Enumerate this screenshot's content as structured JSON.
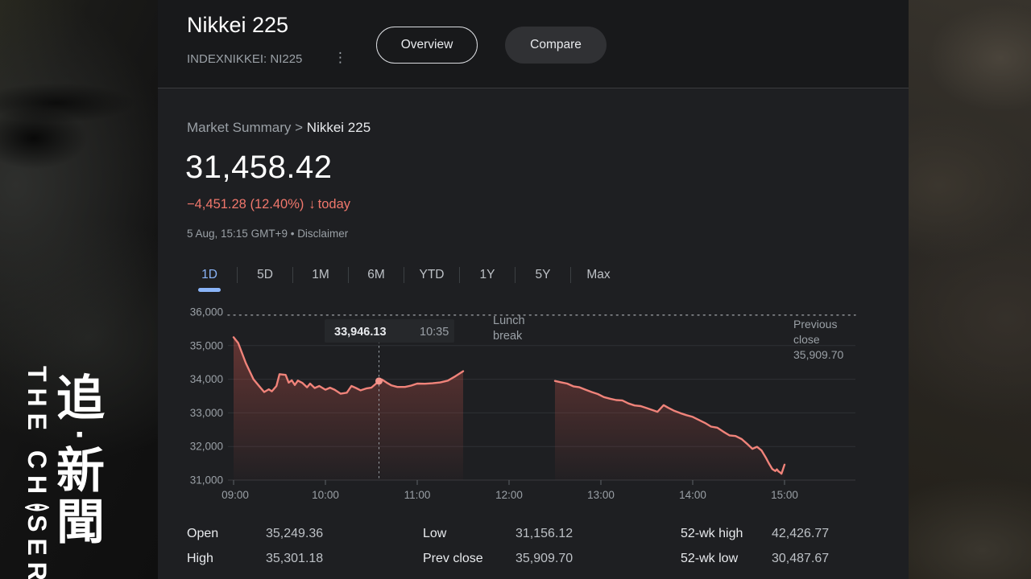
{
  "brand": {
    "en_pre": "THE CH",
    "en_post": "SER",
    "en_full": "THE CHASER",
    "zh_chars": [
      "追",
      "·",
      "新",
      "聞"
    ]
  },
  "header": {
    "title": "Nikkei 225",
    "ticker": "INDEXNIKKEI: NI225",
    "menu_glyph": "⋮",
    "overview_label": "Overview",
    "compare_label": "Compare"
  },
  "summary": {
    "breadcrumb_root": "Market Summary",
    "breadcrumb_sep": " > ",
    "breadcrumb_current": "Nikkei 225",
    "price": "31,458.42",
    "change": "−4,451.28 (12.40%)",
    "change_arrow": "↓",
    "change_suffix": "today",
    "meta_time": "5 Aug, 15:15 GMT+9 • ",
    "disclaimer": "Disclaimer"
  },
  "tabs": {
    "items": [
      "1D",
      "5D",
      "1M",
      "6M",
      "YTD",
      "1Y",
      "5Y",
      "Max"
    ],
    "active": "1D"
  },
  "chart_data": {
    "type": "line",
    "title": "Nikkei 225 1D intraday",
    "line_color": "#f0837a",
    "x_axis": {
      "labels": [
        "09:00",
        "10:00",
        "11:00",
        "12:00",
        "13:00",
        "14:00",
        "15:00"
      ],
      "start_minutes": 0,
      "end_minutes": 360
    },
    "y_axis": {
      "labels": [
        "36,000",
        "35,000",
        "34,000",
        "33,000",
        "32,000",
        "31,000"
      ],
      "min": 31000,
      "max": 36000,
      "grid": true
    },
    "previous_close": {
      "label_line1": "Previous",
      "label_line2": "close",
      "value_text": "35,909.70",
      "value": 35909.7
    },
    "lunch_break": {
      "label_line1": "Lunch",
      "label_line2": "break",
      "start_minutes": 150,
      "end_minutes": 210
    },
    "tooltip": {
      "price": "33,946.13",
      "time": "10:35",
      "minutes": 95,
      "value": 33946.13
    },
    "sessions": [
      {
        "name": "morning",
        "points": [
          [
            0,
            35249
          ],
          [
            3,
            35080
          ],
          [
            8,
            34480
          ],
          [
            13,
            34000
          ],
          [
            17,
            33780
          ],
          [
            20,
            33620
          ],
          [
            23,
            33700
          ],
          [
            25,
            33640
          ],
          [
            28,
            33800
          ],
          [
            30,
            34150
          ],
          [
            34,
            34130
          ],
          [
            36,
            33900
          ],
          [
            38,
            33970
          ],
          [
            40,
            33830
          ],
          [
            42,
            33960
          ],
          [
            45,
            33890
          ],
          [
            48,
            33760
          ],
          [
            50,
            33870
          ],
          [
            53,
            33740
          ],
          [
            56,
            33800
          ],
          [
            60,
            33690
          ],
          [
            63,
            33750
          ],
          [
            66,
            33690
          ],
          [
            70,
            33570
          ],
          [
            74,
            33600
          ],
          [
            77,
            33800
          ],
          [
            80,
            33740
          ],
          [
            83,
            33670
          ],
          [
            87,
            33730
          ],
          [
            90,
            33750
          ],
          [
            95,
            33946.13
          ],
          [
            97,
            33990
          ],
          [
            100,
            33900
          ],
          [
            103,
            33820
          ],
          [
            107,
            33770
          ],
          [
            112,
            33770
          ],
          [
            116,
            33810
          ],
          [
            120,
            33870
          ],
          [
            125,
            33865
          ],
          [
            130,
            33880
          ],
          [
            135,
            33905
          ],
          [
            140,
            33960
          ],
          [
            145,
            34090
          ],
          [
            150,
            34240
          ]
        ]
      },
      {
        "name": "afternoon",
        "points": [
          [
            210,
            33950
          ],
          [
            214,
            33910
          ],
          [
            218,
            33870
          ],
          [
            222,
            33790
          ],
          [
            226,
            33760
          ],
          [
            230,
            33690
          ],
          [
            234,
            33620
          ],
          [
            238,
            33560
          ],
          [
            242,
            33470
          ],
          [
            246,
            33420
          ],
          [
            250,
            33380
          ],
          [
            254,
            33370
          ],
          [
            258,
            33280
          ],
          [
            262,
            33220
          ],
          [
            266,
            33200
          ],
          [
            270,
            33140
          ],
          [
            274,
            33080
          ],
          [
            277,
            33030
          ],
          [
            281,
            33230
          ],
          [
            284,
            33150
          ],
          [
            288,
            33060
          ],
          [
            292,
            32990
          ],
          [
            296,
            32930
          ],
          [
            300,
            32880
          ],
          [
            304,
            32790
          ],
          [
            308,
            32700
          ],
          [
            312,
            32590
          ],
          [
            316,
            32560
          ],
          [
            320,
            32440
          ],
          [
            324,
            32330
          ],
          [
            328,
            32310
          ],
          [
            332,
            32220
          ],
          [
            336,
            32060
          ],
          [
            339,
            31930
          ],
          [
            342,
            31990
          ],
          [
            345,
            31880
          ],
          [
            348,
            31650
          ],
          [
            350,
            31480
          ],
          [
            352,
            31330
          ],
          [
            354,
            31270
          ],
          [
            355,
            31320
          ],
          [
            356,
            31260
          ],
          [
            357,
            31230
          ],
          [
            358,
            31190
          ],
          [
            360,
            31458.42
          ]
        ]
      }
    ]
  },
  "stats": {
    "rows": [
      [
        {
          "label": "Open",
          "value": "35,249.36"
        },
        {
          "label": "Low",
          "value": "31,156.12"
        },
        {
          "label": "52-wk high",
          "value": "42,426.77"
        }
      ],
      [
        {
          "label": "High",
          "value": "35,301.18"
        },
        {
          "label": "Prev close",
          "value": "35,909.70"
        },
        {
          "label": "52-wk low",
          "value": "30,487.67"
        }
      ]
    ]
  },
  "colors": {
    "accent_blue": "#8ab4f8",
    "negative_red": "#f0776c",
    "line_salmon": "#f0837a",
    "panel_bg": "#1e1f22",
    "header_bg": "#18191b",
    "muted_text": "#9aa0a6"
  }
}
